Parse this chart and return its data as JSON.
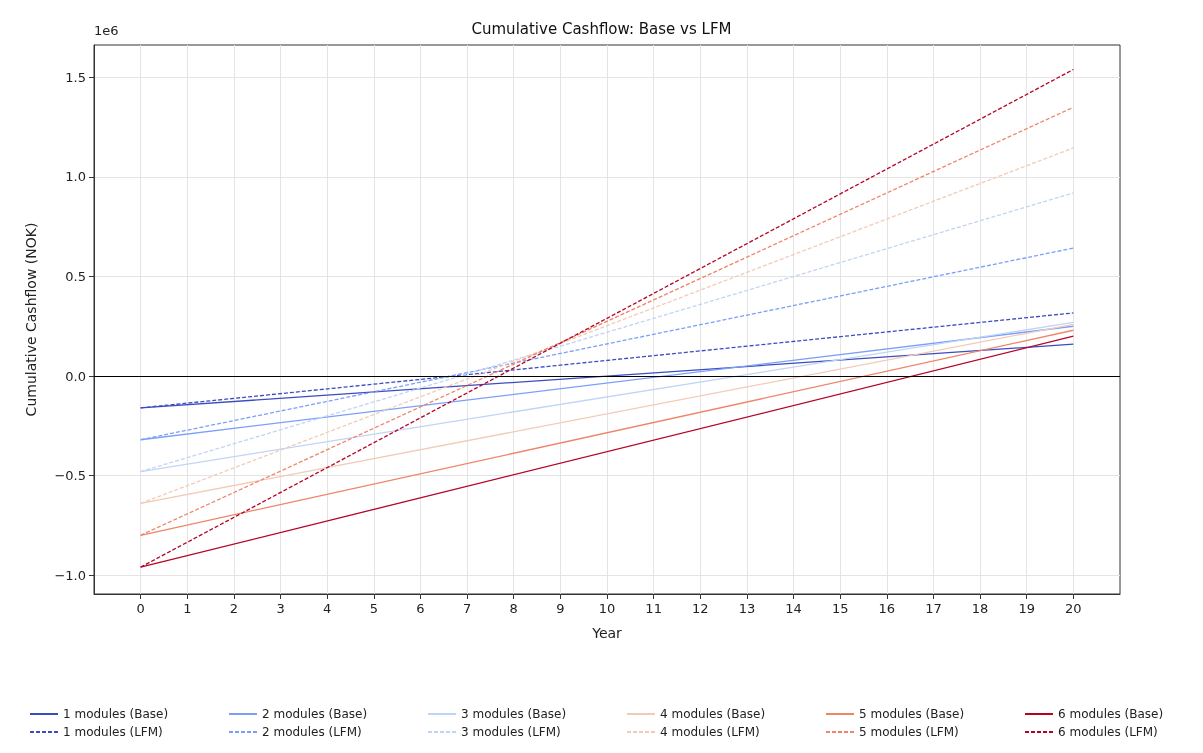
{
  "chart_data": {
    "type": "line",
    "title": "Cumulative Cashflow: Base vs LFM",
    "xlabel": "Year",
    "ylabel": "Cumulative Cashflow (NOK)",
    "annotations": [
      "1e6"
    ],
    "x": [
      0,
      20
    ],
    "xlim": [
      -1,
      21
    ],
    "xticks": [
      0,
      1,
      2,
      3,
      4,
      5,
      6,
      7,
      8,
      9,
      10,
      11,
      12,
      13,
      14,
      15,
      16,
      17,
      18,
      19,
      20
    ],
    "ylim": [
      -1.095,
      1.663
    ],
    "yticks": [
      {
        "value": -1.0,
        "label": "−1.0"
      },
      {
        "value": -0.5,
        "label": "−0.5"
      },
      {
        "value": 0,
        "label": "0.0"
      },
      {
        "value": 0.5,
        "label": "0.5"
      },
      {
        "value": 1.0,
        "label": "1.0"
      },
      {
        "value": 1.5,
        "label": "1.5"
      }
    ],
    "grid": true,
    "legend": "bottom",
    "marker": "none",
    "ref_lines": [
      {
        "axis": "y",
        "value": 0,
        "color": "#000000",
        "line_style": "solid"
      }
    ],
    "series": [
      {
        "name": "1 modules (Base)",
        "color": "#3b4cc0",
        "line_style": "solid",
        "values": [
          -0.16,
          0.16
        ]
      },
      {
        "name": "1 modules (LFM)",
        "color": "#3b4cc0",
        "line_style": "dashed",
        "values": [
          -0.16,
          0.317
        ]
      },
      {
        "name": "2 modules (Base)",
        "color": "#7b9ff9",
        "line_style": "solid",
        "values": [
          -0.32,
          0.25
        ]
      },
      {
        "name": "2 modules (LFM)",
        "color": "#7b9ff9",
        "line_style": "dashed",
        "values": [
          -0.32,
          0.643
        ]
      },
      {
        "name": "3 modules (Base)",
        "color": "#c0d4f5",
        "line_style": "solid",
        "values": [
          -0.48,
          0.27
        ]
      },
      {
        "name": "3 modules (LFM)",
        "color": "#c0d4f5",
        "line_style": "dashed",
        "values": [
          -0.48,
          0.92
        ]
      },
      {
        "name": "4 modules (Base)",
        "color": "#f2cbb7",
        "line_style": "solid",
        "values": [
          -0.64,
          0.26
        ]
      },
      {
        "name": "4 modules (LFM)",
        "color": "#f2cbb7",
        "line_style": "dashed",
        "values": [
          -0.64,
          1.146
        ]
      },
      {
        "name": "5 modules (Base)",
        "color": "#ee8468",
        "line_style": "solid",
        "values": [
          -0.8,
          0.23
        ]
      },
      {
        "name": "5 modules (LFM)",
        "color": "#ee8468",
        "line_style": "dashed",
        "values": [
          -0.8,
          1.35
        ]
      },
      {
        "name": "6 modules (Base)",
        "color": "#b40426",
        "line_style": "solid",
        "values": [
          -0.96,
          0.2
        ]
      },
      {
        "name": "6 modules (LFM)",
        "color": "#b40426",
        "line_style": "dashed",
        "values": [
          -0.96,
          1.54
        ]
      }
    ]
  }
}
